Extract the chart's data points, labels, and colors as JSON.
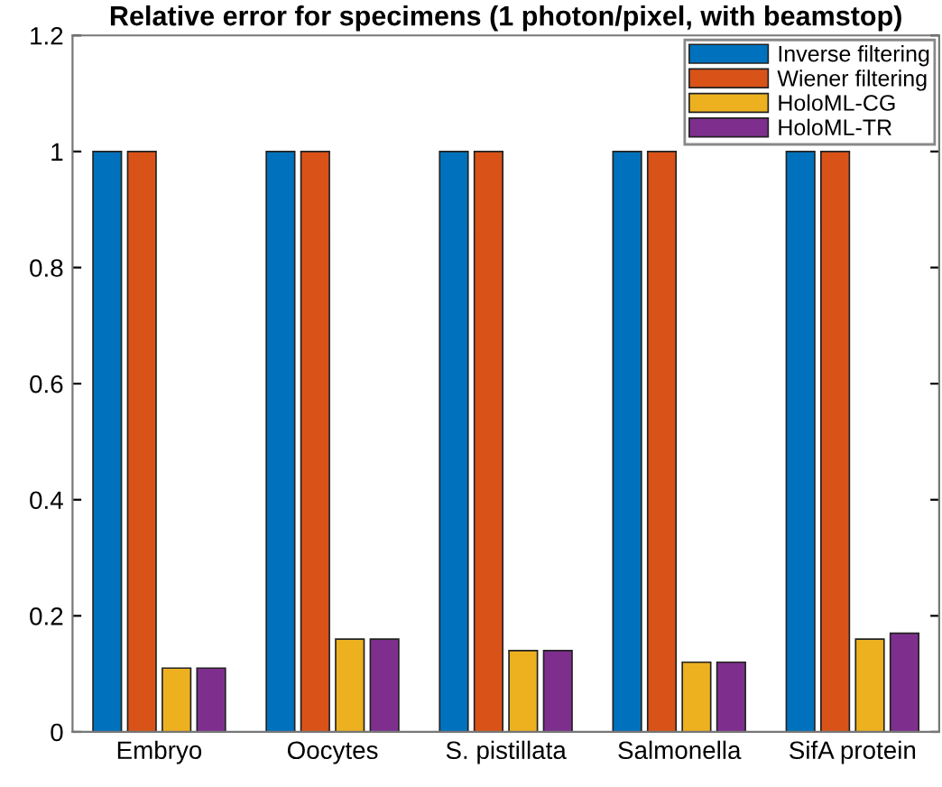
{
  "chart_data": {
    "type": "bar",
    "title": "Relative error for specimens (1 photon/pixel, with beamstop)",
    "categories": [
      "Embryo",
      "Oocytes",
      "S. pistillata",
      "Salmonella",
      "SifA protein"
    ],
    "series": [
      {
        "name": "Inverse filtering",
        "color": "#0072bd",
        "values": [
          1.0,
          1.0,
          1.0,
          1.0,
          1.0
        ]
      },
      {
        "name": "Wiener filtering",
        "color": "#d95319",
        "values": [
          1.0,
          1.0,
          1.0,
          1.0,
          1.0
        ]
      },
      {
        "name": "HoloML-CG",
        "color": "#edb120",
        "values": [
          0.11,
          0.16,
          0.14,
          0.12,
          0.16
        ]
      },
      {
        "name": "HoloML-TR",
        "color": "#7e2f8e",
        "values": [
          0.11,
          0.16,
          0.14,
          0.12,
          0.17
        ]
      }
    ],
    "ylim": [
      0,
      1.2
    ],
    "yticks": [
      0,
      0.2,
      0.4,
      0.6,
      0.8,
      1,
      1.2
    ],
    "grid": false,
    "legend": "top right"
  }
}
